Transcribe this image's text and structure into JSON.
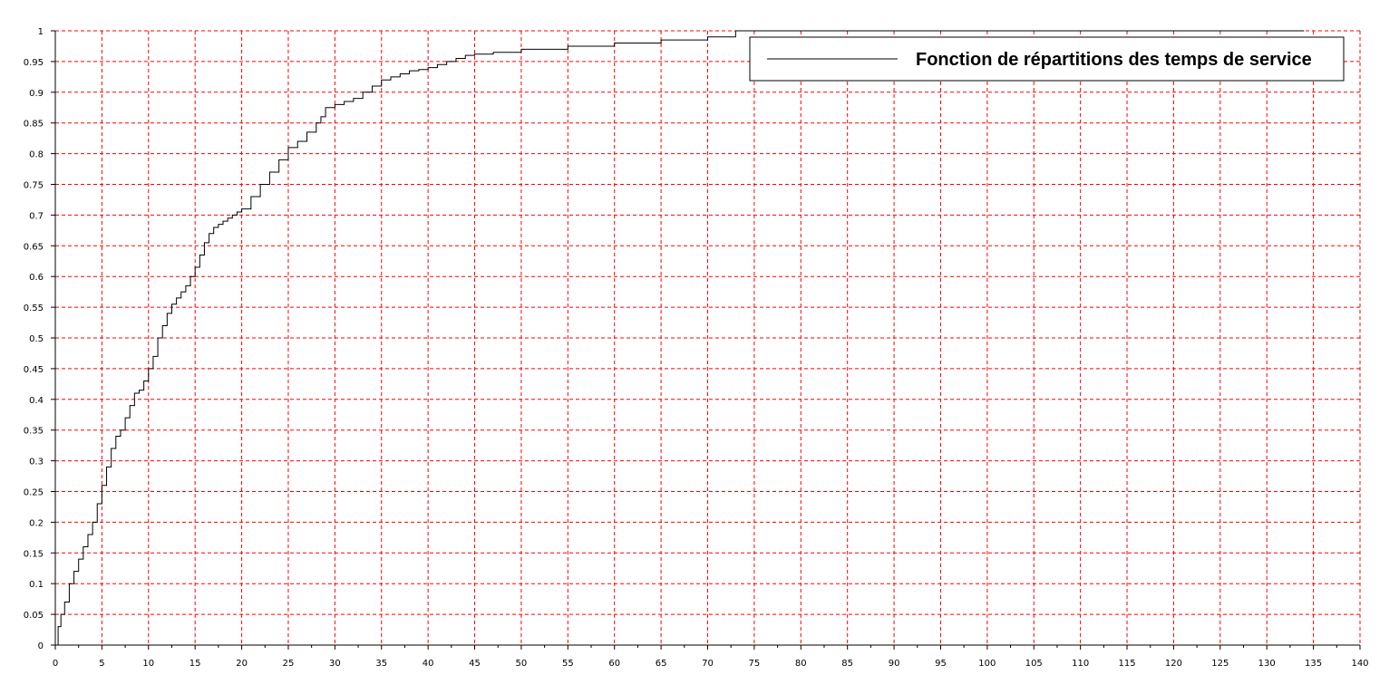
{
  "chart_data": {
    "type": "line",
    "title": "",
    "xlabel": "",
    "ylabel": "",
    "xlim": [
      0,
      140
    ],
    "ylim": [
      0,
      1
    ],
    "x_ticks": [
      0,
      5,
      10,
      15,
      20,
      25,
      30,
      35,
      40,
      45,
      50,
      55,
      60,
      65,
      70,
      75,
      80,
      85,
      90,
      95,
      100,
      105,
      110,
      115,
      120,
      125,
      130,
      135,
      140
    ],
    "x_tick_labels": [
      "0",
      "5",
      "10",
      "15",
      "20",
      "25",
      "30",
      "35",
      "40",
      "45",
      "50",
      "55",
      "60",
      "65",
      "70",
      "75",
      "80",
      "85",
      "90",
      "95",
      "100",
      "105",
      "110",
      "115",
      "120",
      "125",
      "130",
      "135",
      "140"
    ],
    "y_ticks": [
      0,
      0.05,
      0.1,
      0.15,
      0.2,
      0.25,
      0.3,
      0.35,
      0.4,
      0.45,
      0.5,
      0.55,
      0.6,
      0.65,
      0.7,
      0.75,
      0.8,
      0.85,
      0.9,
      0.95,
      1
    ],
    "y_tick_labels": [
      "0",
      "0.05",
      "0.1",
      "0.15",
      "0.2",
      "0.25",
      "0.3",
      "0.35",
      "0.4",
      "0.45",
      "0.5",
      "0.55",
      "0.6",
      "0.65",
      "0.7",
      "0.75",
      "0.8",
      "0.85",
      "0.9",
      "0.95",
      "1"
    ],
    "grid": true,
    "grid_color": "#ff0000",
    "grid_style": "dashed",
    "legend_position": "top-right",
    "series": [
      {
        "name": "Fonction de répartitions des temps de service",
        "color": "#000000",
        "step": true,
        "x": [
          0,
          0.3,
          0.6,
          1,
          1.5,
          2,
          2.5,
          3,
          3.5,
          4,
          4.5,
          5,
          5.5,
          6,
          6.5,
          7,
          7.5,
          8,
          8.5,
          9,
          9.5,
          10,
          10.5,
          11,
          11.5,
          12,
          12.5,
          13,
          13.5,
          14,
          14.5,
          15,
          15.5,
          16,
          16.5,
          17,
          17.5,
          18,
          18.5,
          19,
          19.5,
          20,
          21,
          22,
          23,
          24,
          25,
          26,
          27,
          28,
          28.5,
          29,
          30,
          31,
          32,
          33,
          34,
          35,
          36,
          37,
          38,
          39,
          40,
          41,
          42,
          43,
          44,
          45,
          47,
          50,
          55,
          60,
          65,
          70,
          73,
          80,
          100,
          120,
          134
        ],
        "values": [
          0,
          0.03,
          0.05,
          0.07,
          0.1,
          0.12,
          0.14,
          0.16,
          0.18,
          0.2,
          0.23,
          0.26,
          0.29,
          0.32,
          0.34,
          0.35,
          0.37,
          0.39,
          0.41,
          0.415,
          0.43,
          0.45,
          0.47,
          0.5,
          0.52,
          0.54,
          0.555,
          0.565,
          0.575,
          0.585,
          0.6,
          0.615,
          0.635,
          0.655,
          0.67,
          0.68,
          0.685,
          0.69,
          0.695,
          0.7,
          0.705,
          0.71,
          0.73,
          0.75,
          0.77,
          0.79,
          0.81,
          0.82,
          0.835,
          0.85,
          0.86,
          0.875,
          0.88,
          0.885,
          0.89,
          0.9,
          0.91,
          0.92,
          0.925,
          0.93,
          0.935,
          0.937,
          0.94,
          0.945,
          0.95,
          0.955,
          0.96,
          0.962,
          0.965,
          0.97,
          0.975,
          0.98,
          0.985,
          0.99,
          1,
          1,
          1,
          1,
          1
        ]
      }
    ]
  }
}
